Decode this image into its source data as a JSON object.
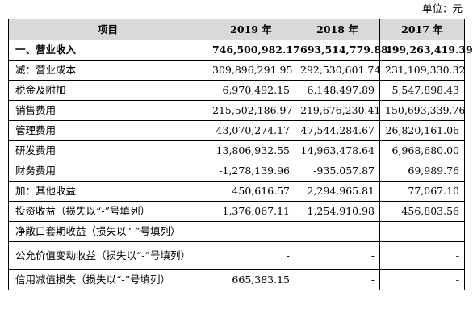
{
  "unit_label": "单位：元",
  "table": {
    "headers": [
      "项目",
      "2019 年",
      "2018 年",
      "2017 年"
    ],
    "rows": [
      {
        "label": "一、营业收入",
        "v2019": "746,500,982.17",
        "v2018": "693,514,779.88",
        "v2017": "499,263,419.39",
        "bold": true
      },
      {
        "label": "减：营业成本",
        "v2019": "309,896,291.95",
        "v2018": "292,530,601.74",
        "v2017": "231,109,330.32"
      },
      {
        "label": "税金及附加",
        "v2019": "6,970,492.15",
        "v2018": "6,148,497.89",
        "v2017": "5,547,898.43"
      },
      {
        "label": "销售费用",
        "v2019": "215,502,186.97",
        "v2018": "219,676,230.41",
        "v2017": "150,693,339.76"
      },
      {
        "label": "管理费用",
        "v2019": "43,070,274.17",
        "v2018": "47,544,284.67",
        "v2017": "26,820,161.06"
      },
      {
        "label": "研发费用",
        "v2019": "13,806,932.55",
        "v2018": "14,963,478.64",
        "v2017": "6,968,680.00"
      },
      {
        "label": "财务费用",
        "v2019": "-1,278,139.96",
        "v2018": "-935,057.87",
        "v2017": "69,989.76"
      },
      {
        "label": "加：其他收益",
        "v2019": "450,616.57",
        "v2018": "2,294,965.81",
        "v2017": "77,067.10"
      },
      {
        "label": "投资收益（损失以“-”号填列）",
        "v2019": "1,376,067.11",
        "v2018": "1,254,910.98",
        "v2017": "456,803.56"
      },
      {
        "label": "净敞口套期收益（损失以“-”号填列）",
        "v2019": "-",
        "v2018": "-",
        "v2017": "-"
      },
      {
        "label": "公允价值变动收益（损失以“-”号填列）",
        "v2019": "-",
        "v2018": "-",
        "v2017": "-",
        "tall": true
      },
      {
        "label": "信用减值损失（损失以“-”号填列）",
        "v2019": "665,383.15",
        "v2018": "-",
        "v2017": "-"
      }
    ]
  }
}
